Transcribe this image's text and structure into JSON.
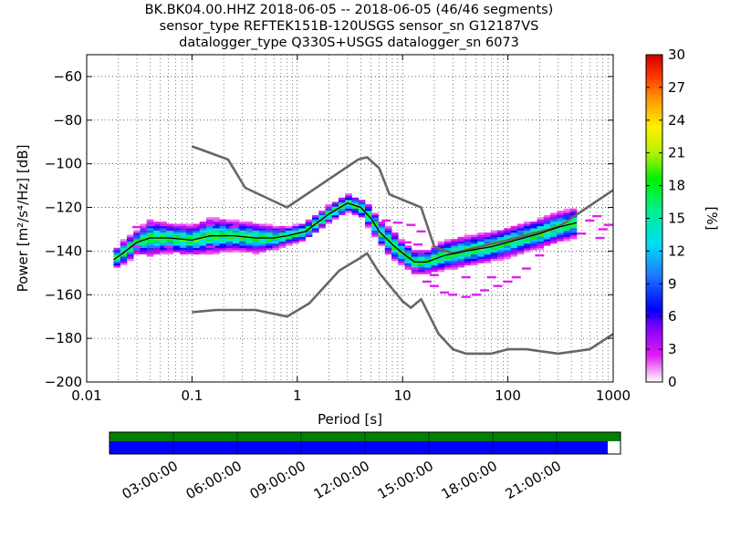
{
  "chart_data": {
    "type": "heatmap",
    "title_lines": [
      "BK.BK04.00.HHZ   2018-06-05 -- 2018-06-05  (46/46 segments)",
      "sensor_type REFTEK151B-120USGS sensor_sn G12187VS",
      "datalogger_type Q330S+USGS datalogger_sn 6073"
    ],
    "xlabel": "Period [s]",
    "ylabel": "Power [m²/s⁴/Hz] [dB]",
    "x_scale": "log",
    "xlim": [
      0.01,
      1000
    ],
    "ylim": [
      -200,
      -50
    ],
    "x_ticks": [
      {
        "value": 0.01,
        "label": "0.01"
      },
      {
        "value": 0.1,
        "label": "0.1"
      },
      {
        "value": 1,
        "label": "1"
      },
      {
        "value": 10,
        "label": "10"
      },
      {
        "value": 100,
        "label": "100"
      },
      {
        "value": 1000,
        "label": "1000"
      }
    ],
    "y_ticks": [
      -60,
      -80,
      -100,
      -120,
      -140,
      -160,
      -180,
      -200
    ],
    "grid": true,
    "colorbar": {
      "label": "[%]",
      "min": 0,
      "max": 30,
      "ticks": [
        0,
        3,
        6,
        9,
        12,
        15,
        18,
        21,
        24,
        27,
        30
      ]
    },
    "noise_models": [
      {
        "name": "high-noise",
        "points": [
          [
            0.1,
            -92
          ],
          [
            0.22,
            -98
          ],
          [
            0.32,
            -111
          ],
          [
            0.8,
            -120
          ],
          [
            3.8,
            -98
          ],
          [
            4.6,
            -97
          ],
          [
            6,
            -102
          ],
          [
            7.5,
            -114
          ],
          [
            15,
            -120
          ],
          [
            20,
            -138
          ],
          [
            30,
            -141
          ],
          [
            100,
            -135
          ],
          [
            300,
            -129
          ],
          [
            1000,
            -112
          ]
        ]
      },
      {
        "name": "low-noise",
        "points": [
          [
            0.1,
            -168
          ],
          [
            0.17,
            -167
          ],
          [
            0.4,
            -167
          ],
          [
            0.8,
            -170
          ],
          [
            1.3,
            -164
          ],
          [
            2.5,
            -149
          ],
          [
            4,
            -143
          ],
          [
            4.6,
            -141
          ],
          [
            6,
            -150
          ],
          [
            10,
            -163
          ],
          [
            12,
            -166
          ],
          [
            15,
            -162
          ],
          [
            22,
            -178
          ],
          [
            30,
            -185
          ],
          [
            40,
            -187
          ],
          [
            70,
            -187
          ],
          [
            100,
            -185
          ],
          [
            150,
            -185
          ],
          [
            300,
            -187
          ],
          [
            600,
            -185
          ],
          [
            1000,
            -178
          ]
        ]
      }
    ],
    "mode_curve": [
      [
        0.018,
        -144
      ],
      [
        0.022,
        -141
      ],
      [
        0.03,
        -136
      ],
      [
        0.04,
        -134
      ],
      [
        0.06,
        -134
      ],
      [
        0.1,
        -135
      ],
      [
        0.15,
        -133
      ],
      [
        0.25,
        -133
      ],
      [
        0.4,
        -134
      ],
      [
        0.6,
        -134
      ],
      [
        0.8,
        -133
      ],
      [
        1.2,
        -131
      ],
      [
        2,
        -123
      ],
      [
        3,
        -118
      ],
      [
        4,
        -120
      ],
      [
        5,
        -125
      ],
      [
        6,
        -131
      ],
      [
        8,
        -137
      ],
      [
        10,
        -141
      ],
      [
        13,
        -145
      ],
      [
        17,
        -145
      ],
      [
        25,
        -142
      ],
      [
        40,
        -140
      ],
      [
        70,
        -138
      ],
      [
        100,
        -136
      ],
      [
        200,
        -132
      ],
      [
        300,
        -129
      ],
      [
        450,
        -127
      ]
    ],
    "pdf_band": [
      [
        0.018,
        3
      ],
      [
        0.022,
        4
      ],
      [
        0.03,
        4
      ],
      [
        0.04,
        6
      ],
      [
        0.06,
        5
      ],
      [
        0.1,
        5
      ],
      [
        0.15,
        6
      ],
      [
        0.25,
        5
      ],
      [
        0.4,
        5
      ],
      [
        0.6,
        4
      ],
      [
        0.8,
        3
      ],
      [
        1.2,
        3
      ],
      [
        2,
        3
      ],
      [
        3,
        3
      ],
      [
        4,
        3
      ],
      [
        5,
        4
      ],
      [
        6,
        4
      ],
      [
        8,
        5
      ],
      [
        10,
        4
      ],
      [
        13,
        4
      ],
      [
        17,
        4
      ],
      [
        25,
        5
      ],
      [
        40,
        5
      ],
      [
        70,
        5
      ],
      [
        100,
        5
      ],
      [
        200,
        5
      ],
      [
        300,
        5
      ],
      [
        450,
        5
      ]
    ],
    "outliers": [
      [
        0.03,
        -129
      ],
      [
        0.04,
        -128
      ],
      [
        0.06,
        -128
      ],
      [
        0.1,
        -129
      ],
      [
        0.15,
        -128
      ],
      [
        0.25,
        -129
      ],
      [
        0.03,
        -138
      ],
      [
        0.06,
        -138
      ],
      [
        0.15,
        -138
      ],
      [
        7,
        -126
      ],
      [
        9,
        -127
      ],
      [
        12,
        -128
      ],
      [
        15,
        -131
      ],
      [
        14,
        -137
      ],
      [
        11,
        -136
      ],
      [
        13,
        -148
      ],
      [
        15,
        -150
      ],
      [
        17,
        -154
      ],
      [
        20,
        -156
      ],
      [
        25,
        -159
      ],
      [
        30,
        -160
      ],
      [
        40,
        -161
      ],
      [
        50,
        -160
      ],
      [
        60,
        -158
      ],
      [
        80,
        -156
      ],
      [
        100,
        -154
      ],
      [
        120,
        -152
      ],
      [
        150,
        -148
      ],
      [
        200,
        -142
      ],
      [
        40,
        -152
      ],
      [
        70,
        -152
      ],
      [
        20,
        -151
      ],
      [
        500,
        -132
      ],
      [
        600,
        -126
      ],
      [
        700,
        -124
      ],
      [
        800,
        -130
      ],
      [
        900,
        -128
      ],
      [
        750,
        -134
      ]
    ],
    "timeline": {
      "tick_labels": [
        "03:00:00",
        "06:00:00",
        "09:00:00",
        "12:00:00",
        "15:00:00",
        "18:00:00",
        "21:00:00"
      ],
      "tick_hours": [
        3,
        6,
        9,
        12,
        15,
        18,
        21
      ],
      "hours_span": 24,
      "coverage_bar_color": "#008000",
      "data_bar_color": "#0000ff",
      "data_fraction": 0.975
    }
  }
}
